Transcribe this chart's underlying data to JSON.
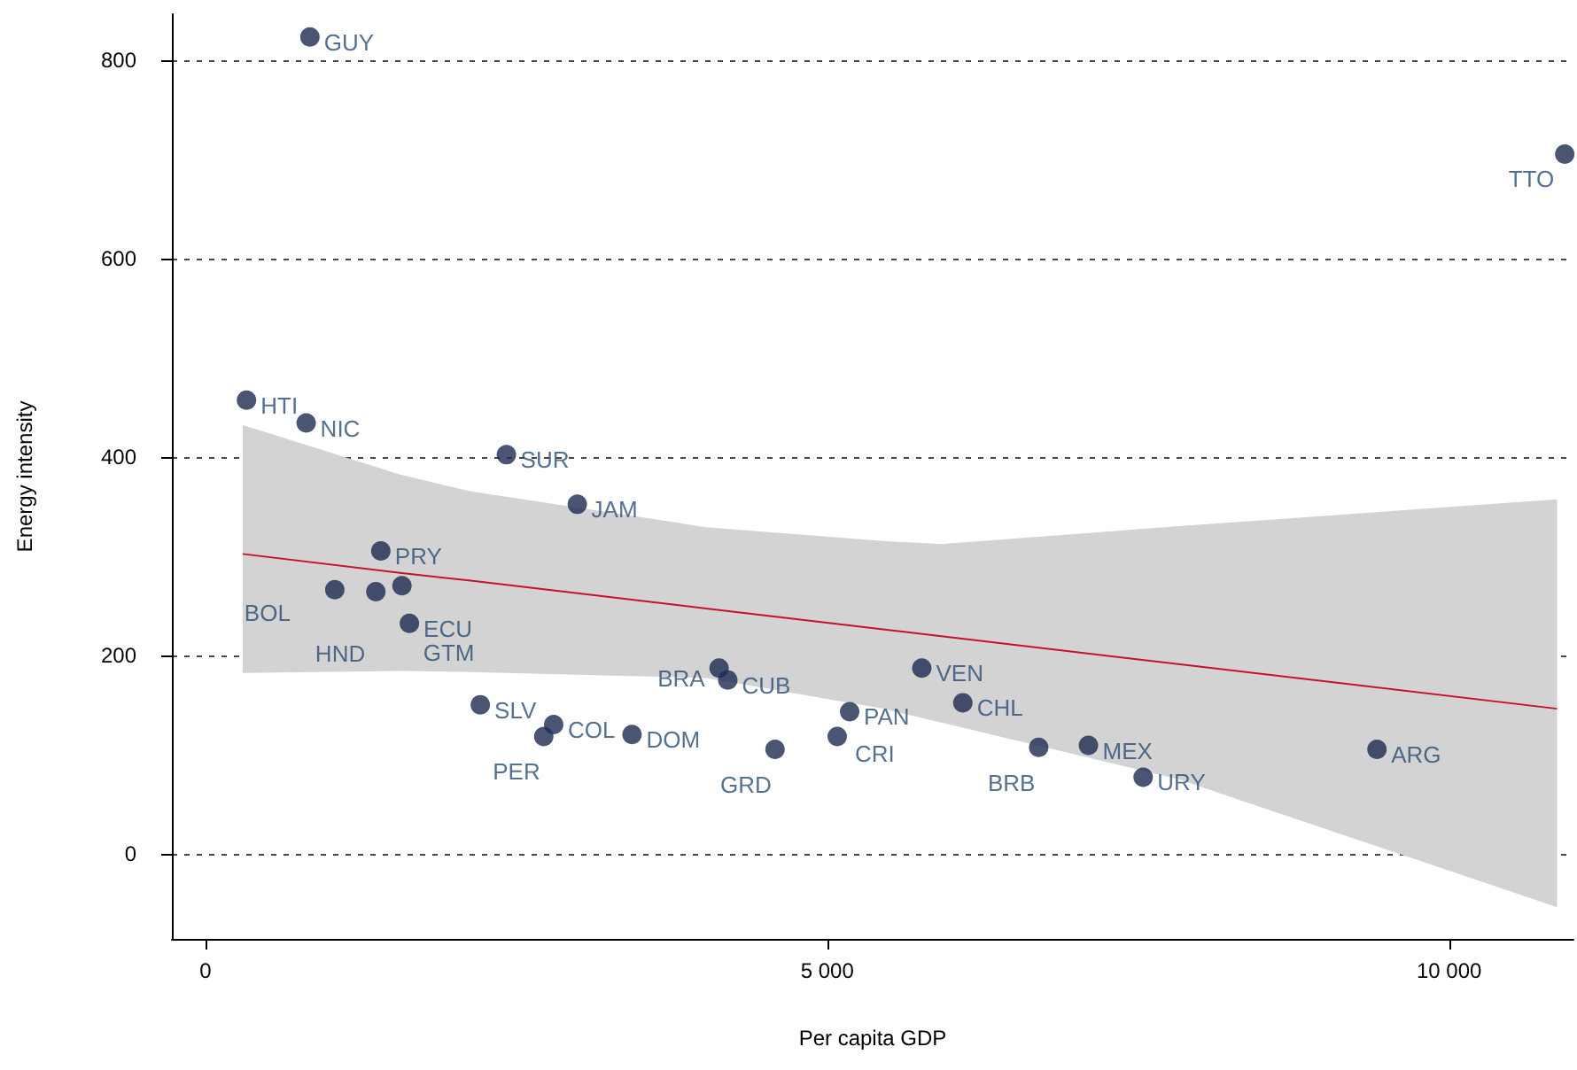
{
  "chart_data": {
    "type": "scatter",
    "xlabel": "Per capita GDP",
    "ylabel": "Energy intensity",
    "xlim": [
      -270,
      11000
    ],
    "xticks": [
      0,
      {
        "value": 5000,
        "label": "5 000"
      },
      {
        "value": 10000,
        "label": "10 000"
      }
    ],
    "ylim": [
      -86,
      846
    ],
    "yticks": [
      0,
      200,
      400,
      600,
      800
    ],
    "grid": "y",
    "series": [
      {
        "color": "#1c2b4f",
        "marker": "circle",
        "x": [
          840,
          10930,
          330,
          810,
          2420,
          2990,
          1410,
          1040,
          1370,
          1580,
          1640,
          2210,
          2800,
          2720,
          3430,
          4130,
          4200,
          4580,
          5080,
          5180,
          5760,
          6090,
          6700,
          7100,
          7540,
          9420
        ],
        "values": [
          823,
          705,
          457,
          434,
          402,
          352,
          305,
          266,
          264,
          270,
          232,
          150,
          130,
          118,
          120,
          187,
          175,
          105,
          118,
          143,
          187,
          152,
          107,
          109,
          77,
          105
        ]
      },
      {
        "type": "line",
        "color": "#c8102e",
        "line_style": "solid",
        "marker": "none",
        "x": [
          299,
          1565,
          2134,
          4026,
          5448,
          5917,
          7824,
          10868
        ],
        "values": [
          302,
          283,
          275,
          247,
          226,
          219,
          191,
          146
        ],
        "lower": [
          182,
          184,
          183,
          177,
          146,
          132,
          75,
          -54
        ],
        "upper": [
          432,
          382,
          365,
          329,
          315,
          312,
          330,
          357
        ]
      }
    ],
    "annotations": [
      {
        "text": "GUY",
        "x": 840,
        "y": 823
      },
      {
        "text": "TTO",
        "x": 10930,
        "y": 705
      },
      {
        "text": "HTI",
        "x": 330,
        "y": 457
      },
      {
        "text": "NIC",
        "x": 810,
        "y": 434
      },
      {
        "text": "SUR",
        "x": 2420,
        "y": 402
      },
      {
        "text": "JAM",
        "x": 2990,
        "y": 352
      },
      {
        "text": "PRY",
        "x": 1410,
        "y": 305
      },
      {
        "text": "BOL",
        "x": 1040,
        "y": 266
      },
      {
        "text": "HND",
        "x": 1370,
        "y": 264
      },
      {
        "text": "GTM",
        "x": 1580,
        "y": 270
      },
      {
        "text": "ECU",
        "x": 1640,
        "y": 232
      },
      {
        "text": "SLV",
        "x": 2210,
        "y": 150
      },
      {
        "text": "COL",
        "x": 2800,
        "y": 130
      },
      {
        "text": "PER",
        "x": 2720,
        "y": 118
      },
      {
        "text": "DOM",
        "x": 3430,
        "y": 120
      },
      {
        "text": "BRA",
        "x": 4130,
        "y": 187
      },
      {
        "text": "CUB",
        "x": 4200,
        "y": 175
      },
      {
        "text": "GRD",
        "x": 4580,
        "y": 105
      },
      {
        "text": "CRI",
        "x": 5080,
        "y": 118
      },
      {
        "text": "PAN",
        "x": 5180,
        "y": 143
      },
      {
        "text": "VEN",
        "x": 5760,
        "y": 187
      },
      {
        "text": "CHL",
        "x": 6090,
        "y": 152
      },
      {
        "text": "BRB",
        "x": 6700,
        "y": 107
      },
      {
        "text": "MEX",
        "x": 7100,
        "y": 109
      },
      {
        "text": "URY",
        "x": 7540,
        "y": 77
      },
      {
        "text": "ARG",
        "x": 9420,
        "y": 105
      }
    ]
  }
}
